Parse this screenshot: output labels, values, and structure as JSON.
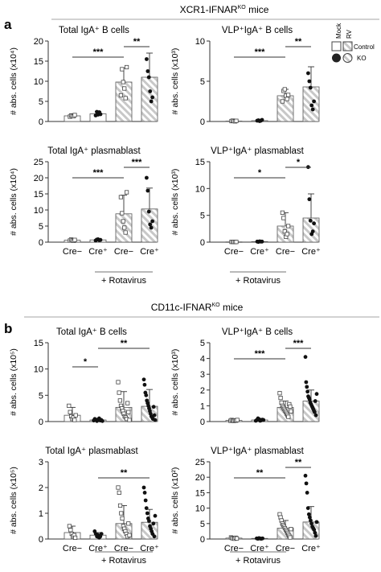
{
  "figure": {
    "section_a_label": "a",
    "section_a_title": "XCR1-IFNAR",
    "section_a_title_sup": "KO",
    "section_a_title_rest": " mice",
    "section_b_label": "b",
    "section_b_title": "CD11c-IFNAR",
    "section_b_title_sup": "KO",
    "section_b_title_rest": " mice",
    "legend": {
      "mock": "Mock",
      "rv": "RV",
      "control": "Control",
      "ko": "KO"
    },
    "x_categories": [
      "Cre−",
      "Cre⁺",
      "Cre−",
      "Cre⁺"
    ],
    "treatment_label": "+ Rotavirus"
  },
  "chart_data": [
    {
      "type": "bar",
      "panel": "a1",
      "title": "Total IgA⁺ B cells",
      "ylabel": "# abs. cells (x10⁴)",
      "ylim": [
        0,
        20
      ],
      "yticks": [
        0,
        5,
        10,
        15,
        20
      ],
      "categories": [
        "Cre−",
        "Cre⁺",
        "Cre−",
        "Cre⁺"
      ],
      "values": [
        1.4,
        1.9,
        9.8,
        11.0
      ],
      "sd": [
        0.3,
        0.6,
        3.5,
        6.0
      ],
      "points": [
        [
          1.2,
          1.5,
          1.4,
          1.3,
          1.6
        ],
        [
          1.5,
          2.4,
          1.7,
          2.3,
          1.8
        ],
        [
          6.5,
          13.0,
          9.8,
          8.2,
          5.8,
          13.5
        ],
        [
          15.5,
          12.5,
          11.0,
          7.5,
          5.0,
          6.0
        ]
      ],
      "significance": [
        {
          "from": 0,
          "to": 2,
          "label": "***"
        },
        {
          "from": 2,
          "to": 3,
          "label": "**"
        }
      ]
    },
    {
      "type": "bar",
      "panel": "a2",
      "title": "VLP⁺IgA⁺ B cells",
      "ylabel": "# abs. cells (x10³)",
      "ylim": [
        0,
        10
      ],
      "yticks": [
        0,
        5,
        10
      ],
      "categories": [
        "Cre−",
        "Cre⁺",
        "Cre−",
        "Cre⁺"
      ],
      "values": [
        0.05,
        0.1,
        3.2,
        4.3
      ],
      "sd": [
        0.05,
        0.05,
        0.8,
        2.5
      ],
      "points": [
        [
          0.05,
          0.1,
          0.05,
          0.02,
          0.08
        ],
        [
          0.1,
          0.15,
          0.05,
          0.1,
          0.2
        ],
        [
          2.5,
          3.8,
          4.0,
          3.2,
          2.8,
          3.3
        ],
        [
          6.0,
          5.0,
          4.2,
          2.0,
          1.5,
          2.5
        ]
      ],
      "significance": [
        {
          "from": 0,
          "to": 2,
          "label": "***"
        },
        {
          "from": 2,
          "to": 3,
          "label": "**"
        }
      ]
    },
    {
      "type": "bar",
      "panel": "a3",
      "title": "Total IgA⁺ plasmablast",
      "ylabel": "# abs. cells (x10⁴)",
      "ylim": [
        0,
        25
      ],
      "yticks": [
        0,
        5,
        10,
        15,
        20,
        25
      ],
      "categories": [
        "Cre−",
        "Cre⁺",
        "Cre−",
        "Cre⁺"
      ],
      "values": [
        0.6,
        0.7,
        8.8,
        10.3
      ],
      "sd": [
        0.3,
        0.3,
        5.8,
        6.5
      ],
      "points": [
        [
          0.5,
          0.8,
          0.6,
          0.4,
          0.7
        ],
        [
          0.5,
          0.8,
          0.9,
          0.6,
          0.7
        ],
        [
          14.0,
          9.0,
          6.5,
          4.5,
          3.0,
          15.5
        ],
        [
          20.0,
          16.0,
          9.5,
          5.5,
          4.5,
          6.5
        ]
      ],
      "significance": [
        {
          "from": 0,
          "to": 2,
          "label": "***"
        },
        {
          "from": 2,
          "to": 3,
          "label": "***"
        }
      ]
    },
    {
      "type": "bar",
      "panel": "a4",
      "title": "VLP⁺IgA⁺ plasmablast",
      "ylabel": "# abs. cells (x10³)",
      "ylim": [
        0,
        15
      ],
      "yticks": [
        0,
        5,
        10,
        15
      ],
      "categories": [
        "Cre−",
        "Cre⁺",
        "Cre−",
        "Cre⁺"
      ],
      "values": [
        0.05,
        0.1,
        3.0,
        4.5
      ],
      "sd": [
        0.05,
        0.05,
        2.5,
        4.5
      ],
      "points": [
        [
          0.05,
          0.05,
          0.05,
          0.03,
          0.04
        ],
        [
          0.1,
          0.05,
          0.15,
          0.1,
          0.1
        ],
        [
          5.5,
          4.5,
          2.0,
          1.0,
          1.5,
          3.0
        ],
        [
          14.0,
          8.0,
          4.0,
          1.5,
          2.0,
          3.5
        ]
      ],
      "significance": [
        {
          "from": 0,
          "to": 2,
          "label": "*"
        },
        {
          "from": 2,
          "to": 3,
          "label": "*"
        }
      ]
    },
    {
      "type": "bar",
      "panel": "b1",
      "title": "Total IgA⁺ B cells",
      "ylabel": "# abs. cells (x10⁵)",
      "ylim": [
        0,
        15
      ],
      "yticks": [
        0,
        5,
        10,
        15
      ],
      "categories": [
        "Cre−",
        "Cre⁺",
        "Cre−",
        "Cre⁺"
      ],
      "values": [
        1.2,
        0.3,
        2.7,
        2.9
      ],
      "sd": [
        1.5,
        0.3,
        3.0,
        3.2
      ],
      "points": [
        [
          3.0,
          1.8,
          1.0,
          0.5,
          0.8,
          0.3,
          1.2
        ],
        [
          0.2,
          0.5,
          0.3,
          0.1,
          0.4,
          0.6,
          0.2,
          0.3,
          0.1
        ],
        [
          7.5,
          5.5,
          4.0,
          3.0,
          2.5,
          2.0,
          1.5,
          1.0,
          0.8,
          0.5,
          3.5,
          1.8,
          0.3
        ],
        [
          8.0,
          7.0,
          5.5,
          5.0,
          4.0,
          3.5,
          3.0,
          2.5,
          2.0,
          1.5,
          1.0,
          0.8,
          0.5,
          2.8,
          1.2,
          0.3
        ]
      ],
      "significance": [
        {
          "from": 0,
          "to": 1,
          "label": "*"
        },
        {
          "from": 1,
          "to": 3,
          "label": "**"
        }
      ]
    },
    {
      "type": "bar",
      "panel": "b2",
      "title": "VLP⁺IgA⁺ B cells",
      "ylabel": "# abs. cells (x10³)",
      "ylim": [
        0,
        5
      ],
      "yticks": [
        0,
        1,
        2,
        3,
        4,
        5
      ],
      "categories": [
        "Cre−",
        "Cre⁺",
        "Cre−",
        "Cre⁺"
      ],
      "values": [
        0.07,
        0.1,
        0.9,
        1.3
      ],
      "sd": [
        0.03,
        0.1,
        0.4,
        0.7
      ],
      "points": [
        [
          0.05,
          0.1,
          0.07,
          0.04,
          0.08,
          0.06,
          0.1
        ],
        [
          0.05,
          0.1,
          0.2,
          0.15,
          0.05,
          0.08,
          0.12,
          0.1
        ],
        [
          1.8,
          1.5,
          1.2,
          1.0,
          0.9,
          0.8,
          0.7,
          0.6,
          0.5,
          0.4,
          0.3,
          1.1,
          0.95,
          0.65
        ],
        [
          4.1,
          2.5,
          2.2,
          1.9,
          1.6,
          1.5,
          1.4,
          1.2,
          1.1,
          1.0,
          0.9,
          0.8,
          0.7,
          0.6,
          1.3,
          0.4,
          1.75
        ]
      ],
      "significance": [
        {
          "from": 0,
          "to": 2,
          "label": "***"
        },
        {
          "from": 2,
          "to": 3,
          "label": "***"
        }
      ]
    },
    {
      "type": "bar",
      "panel": "b3",
      "title": "Total IgA⁺ plasmablast",
      "ylabel": "# abs. cells (x10⁵)",
      "ylim": [
        0,
        3
      ],
      "yticks": [
        0,
        1,
        2,
        3
      ],
      "categories": [
        "Cre−",
        "Cre⁺",
        "Cre−",
        "Cre⁺"
      ],
      "values": [
        0.25,
        0.15,
        0.6,
        0.65
      ],
      "sd": [
        0.25,
        0.1,
        0.7,
        0.5
      ],
      "points": [
        [
          0.5,
          0.35,
          0.2,
          0.1,
          0.15,
          0.05
        ],
        [
          0.3,
          0.2,
          0.1,
          0.15,
          0.05,
          0.1,
          0.2
        ],
        [
          2.0,
          1.8,
          1.3,
          1.0,
          0.8,
          0.5,
          0.4,
          0.3,
          0.2,
          0.1,
          0.6,
          0.15
        ],
        [
          2.0,
          1.8,
          1.5,
          1.2,
          1.0,
          0.8,
          0.7,
          0.5,
          0.4,
          0.3,
          0.2,
          0.6,
          0.1,
          0.9
        ]
      ],
      "significance": [
        {
          "from": 1,
          "to": 3,
          "label": "**"
        }
      ]
    },
    {
      "type": "bar",
      "panel": "b4",
      "title": "VLP⁺IgA⁺ plasmablast",
      "ylabel": "# abs. cells (x10²)",
      "ylim": [
        0,
        25
      ],
      "yticks": [
        0,
        5,
        10,
        15,
        20,
        25
      ],
      "categories": [
        "Cre−",
        "Cre⁺",
        "Cre−",
        "Cre⁺"
      ],
      "values": [
        0.3,
        0.2,
        3.5,
        5.5
      ],
      "sd": [
        0.2,
        0.1,
        2.5,
        5.0
      ],
      "points": [
        [
          0.5,
          0.3,
          0.2,
          0.1,
          0.4,
          0.2
        ],
        [
          0.2,
          0.1,
          0.3,
          0.15,
          0.1,
          0.2
        ],
        [
          8.0,
          7.0,
          6.0,
          5.0,
          4.5,
          4.0,
          3.5,
          3.0,
          2.5,
          2.0,
          1.5,
          1.0,
          0.5,
          3.2
        ],
        [
          20.5,
          18.0,
          15.0,
          10.0,
          8.0,
          7.0,
          6.0,
          5.0,
          4.0,
          3.5,
          3.0,
          2.0,
          1.0,
          5.5
        ]
      ],
      "significance": [
        {
          "from": 0,
          "to": 2,
          "label": "**"
        },
        {
          "from": 2,
          "to": 3,
          "label": "**"
        }
      ]
    }
  ]
}
